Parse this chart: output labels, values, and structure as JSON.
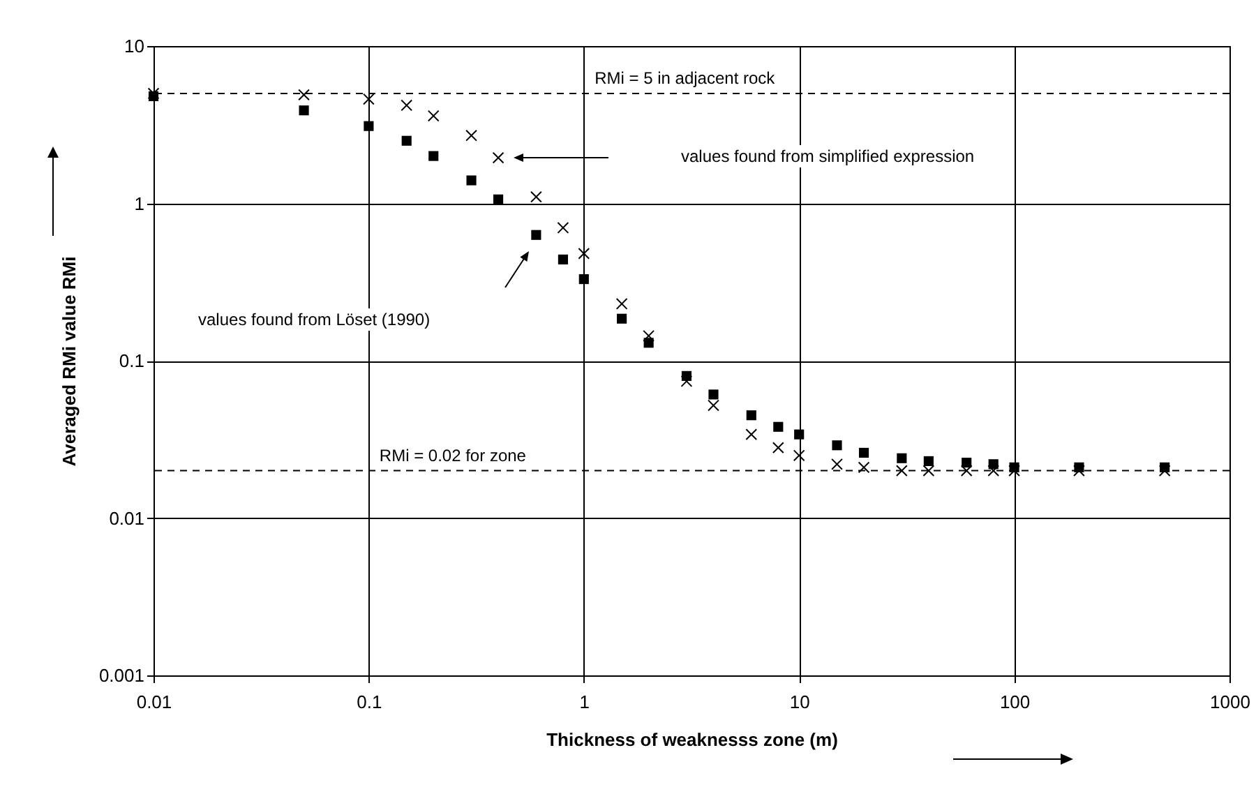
{
  "chart_data": {
    "type": "scatter",
    "xlabel": "Thickness of weaknesss zone   (m)",
    "ylabel": "Averaged RMi value  RMi",
    "log": "xy",
    "grid": true,
    "xlim": [
      0.01,
      1000
    ],
    "xticks": [
      0.01,
      0.1,
      1,
      10,
      100,
      1000
    ],
    "ylim": [
      0.001,
      10
    ],
    "yticks": [
      0.001,
      0.01,
      0.1,
      1,
      10
    ],
    "x": [
      0.01,
      0.05,
      0.1,
      0.15,
      0.2,
      0.3,
      0.4,
      0.6,
      0.8,
      1,
      1.5,
      2,
      3,
      4,
      6,
      8,
      10,
      15,
      20,
      30,
      40,
      60,
      80,
      100,
      200,
      500
    ],
    "series": [
      {
        "color": "#000000",
        "marker": "square",
        "values": [
          4.8,
          3.9,
          3.1,
          2.5,
          2.0,
          1.4,
          1.06,
          0.63,
          0.44,
          0.33,
          0.185,
          0.13,
          0.08,
          0.061,
          0.045,
          0.038,
          0.034,
          0.029,
          0.026,
          0.024,
          0.023,
          0.0225,
          0.022,
          0.021,
          0.021,
          0.021
        ]
      },
      {
        "color": "#000000",
        "marker": "cross",
        "values": [
          5.0,
          4.9,
          4.6,
          4.2,
          3.6,
          2.7,
          1.95,
          1.1,
          0.7,
          0.48,
          0.23,
          0.144,
          0.074,
          0.052,
          0.034,
          0.028,
          0.025,
          0.022,
          0.021,
          0.02,
          0.02,
          0.02,
          0.02,
          0.02,
          0.02,
          0.02
        ]
      }
    ],
    "ref_lines": [
      {
        "axis": "y",
        "value": 5,
        "label": "RMi = 5 in adjacent rock",
        "line_style": "dashed"
      },
      {
        "axis": "y",
        "value": 0.02,
        "label": "RMi = 0.02 for zone",
        "line_style": "dashed"
      }
    ],
    "annotations": [
      "values found from simplified expression",
      "values found from Löset (1990)"
    ]
  }
}
